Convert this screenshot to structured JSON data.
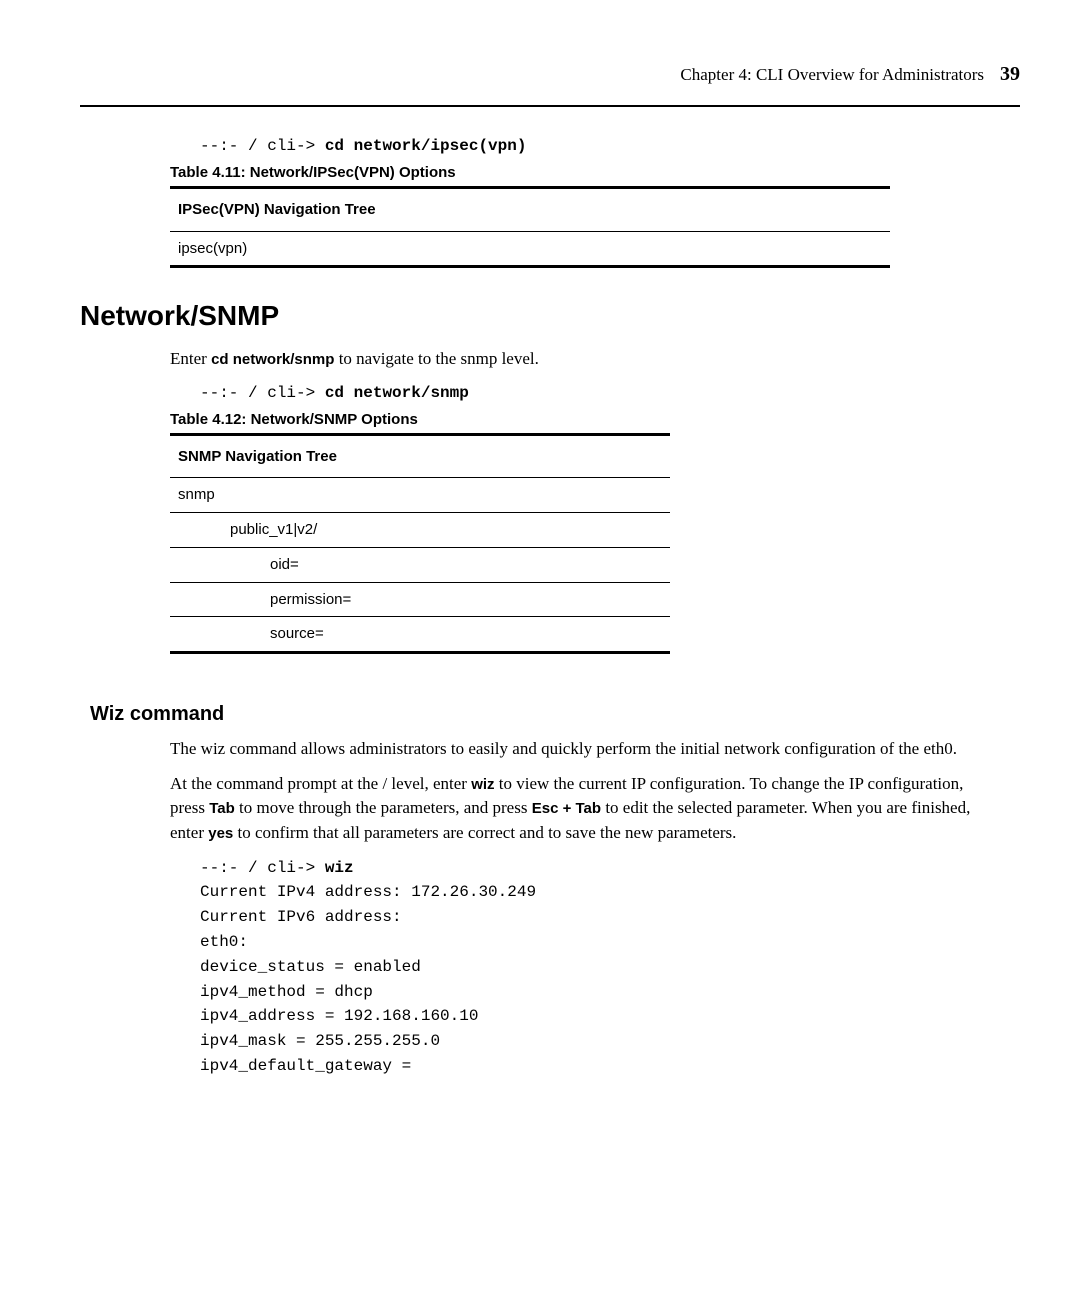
{
  "header": {
    "chapter_text": "Chapter 4: CLI Overview for Administrators",
    "page_number": "39"
  },
  "cmd_ipsec": {
    "prompt": "--:- / cli-> ",
    "cmd": "cd network/ipsec(vpn)"
  },
  "table_411": {
    "caption": "Table 4.11: Network/IPSec(VPN) Options",
    "header": "IPSec(VPN) Navigation Tree",
    "rows": [
      "ipsec(vpn)"
    ]
  },
  "section_snmp": {
    "heading": "Network/SNMP",
    "intro_pre": "Enter ",
    "intro_bold": "cd network/snmp",
    "intro_post": " to navigate to the snmp level."
  },
  "cmd_snmp": {
    "prompt": "--:- / cli-> ",
    "cmd": "cd network/snmp"
  },
  "table_412": {
    "caption": "Table 4.12: Network/SNMP Options",
    "header": "SNMP Navigation Tree",
    "row0": "snmp",
    "row1": "public_v1|v2/",
    "row2": "oid=",
    "row3": "permission=",
    "row4": "source="
  },
  "section_wiz": {
    "heading": "Wiz command",
    "para1": "The wiz command allows administrators to easily and quickly perform the initial network configuration of the eth0.",
    "p2_a": "At the command prompt at the / level, enter ",
    "p2_b1": "wiz",
    "p2_b": " to view the current IP configuration. To change the IP configuration, press ",
    "p2_b2": "Tab",
    "p2_c": " to move through the parameters, and press ",
    "p2_b3": "Esc + Tab",
    "p2_d": " to edit the selected parameter. When you are finished, enter ",
    "p2_b4": "yes",
    "p2_e": " to confirm that all parameters are correct and to save the new parameters."
  },
  "wiz_output": {
    "prompt": "--:- / cli-> ",
    "cmd": "wiz",
    "lines": [
      "Current IPv4 address: 172.26.30.249",
      "Current IPv6 address:",
      "eth0:",
      "device_status = enabled",
      "ipv4_method = dhcp",
      "ipv4_address = 192.168.160.10",
      "ipv4_mask = 255.255.255.0",
      "ipv4_default_gateway ="
    ]
  }
}
